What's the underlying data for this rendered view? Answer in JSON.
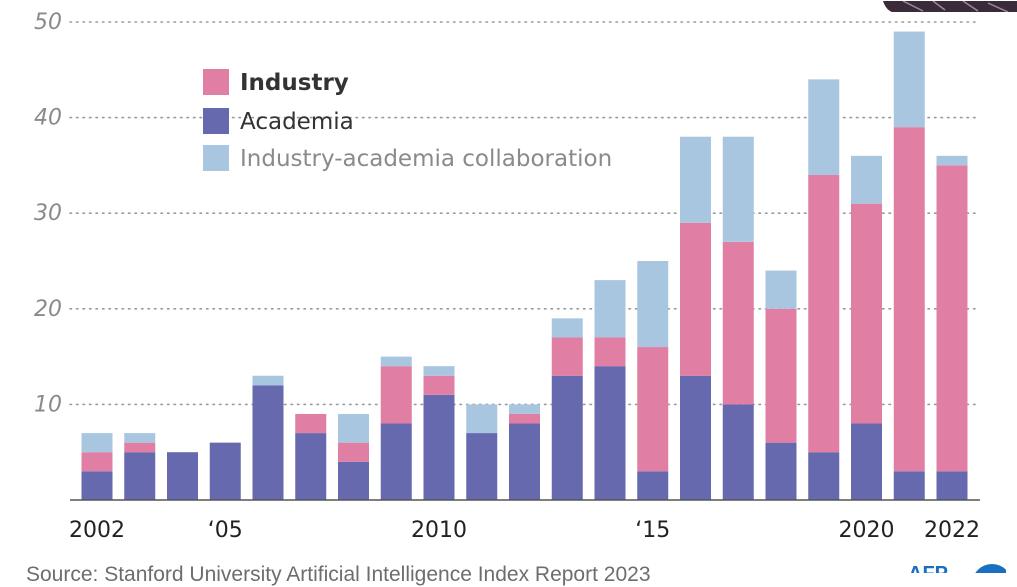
{
  "chart_data": {
    "type": "bar",
    "stacked": true,
    "title": "",
    "xlabel": "",
    "ylabel": "",
    "ylim": [
      0,
      50
    ],
    "yticks": [
      10,
      20,
      30,
      40,
      50
    ],
    "grid": true,
    "legend_position": "top-left",
    "categories": [
      "2002",
      "2003",
      "2004",
      "2005",
      "2006",
      "2007",
      "2008",
      "2009",
      "2010",
      "2011",
      "2012",
      "2013",
      "2014",
      "2015",
      "2016",
      "2017",
      "2018",
      "2019",
      "2020",
      "2021",
      "2022"
    ],
    "x_tick_labels": [
      {
        "category": "2002",
        "label": "2002"
      },
      {
        "category": "2005",
        "label": "‘05"
      },
      {
        "category": "2010",
        "label": "2010"
      },
      {
        "category": "2015",
        "label": "‘15"
      },
      {
        "category": "2020",
        "label": "2020"
      },
      {
        "category": "2022",
        "label": "2022"
      }
    ],
    "series": [
      {
        "name": "Academia",
        "color": "#6669ae",
        "values": [
          3,
          5,
          5,
          6,
          12,
          7,
          4,
          8,
          11,
          7,
          8,
          13,
          14,
          3,
          13,
          10,
          6,
          5,
          8,
          3,
          3
        ]
      },
      {
        "name": "Industry",
        "color": "#e07fa3",
        "values": [
          2,
          1,
          0,
          0,
          0,
          2,
          2,
          6,
          2,
          0,
          1,
          4,
          3,
          13,
          16,
          17,
          14,
          29,
          23,
          36,
          32
        ]
      },
      {
        "name": "Industry-academia collaboration",
        "color": "#a9c6e0",
        "values": [
          2,
          1,
          0,
          0,
          1,
          0,
          3,
          1,
          1,
          3,
          1,
          2,
          6,
          9,
          9,
          11,
          4,
          10,
          5,
          10,
          1
        ]
      }
    ],
    "legend_order": [
      "Industry",
      "Academia",
      "Industry-academia collaboration"
    ]
  },
  "footer": {
    "source_text": "Source: Stanford University Artificial Intelligence Index Report 2023",
    "logo_text": "AFP"
  },
  "colors": {
    "industry": "#e07fa3",
    "academia": "#6669ae",
    "collaboration": "#a9c6e0",
    "logo": "#1b6fc2"
  }
}
